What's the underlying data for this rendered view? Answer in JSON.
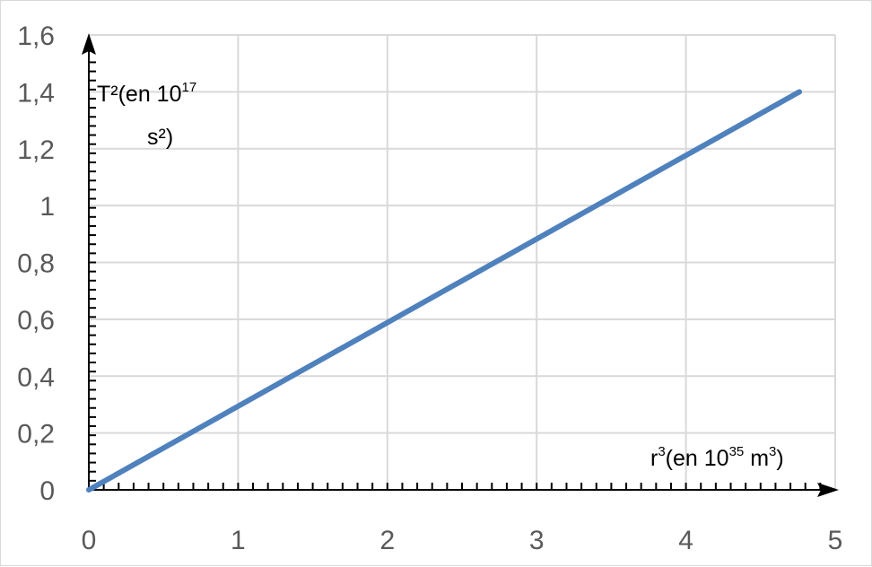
{
  "chart_data": {
    "type": "line",
    "title": "",
    "xlim": [
      0,
      5
    ],
    "ylim": [
      0,
      1.6
    ],
    "x_ticks": [
      "0",
      "1",
      "2",
      "3",
      "4",
      "5"
    ],
    "y_ticks": [
      "0",
      "0,2",
      "0,4",
      "0,6",
      "0,8",
      "1",
      "1,2",
      "1,4",
      "1,6"
    ],
    "x_tick_values": [
      0,
      1,
      2,
      3,
      4,
      5
    ],
    "y_tick_values": [
      0,
      0.2,
      0.4,
      0.6,
      0.8,
      1.0,
      1.2,
      1.4,
      1.6
    ],
    "xlabel": {
      "prefix": "r",
      "prefix_sup": "3",
      "middle": "(en 10",
      "middle_sup": "35",
      "unit": " m",
      "unit_sup": "3",
      "suffix": ")"
    },
    "ylabel": {
      "line1": "T²(en 10",
      "line1_sup": "17",
      "line2": "s²)"
    },
    "grid": true,
    "series": [
      {
        "color": "#4f81bd",
        "x": [
          0,
          4.76
        ],
        "y": [
          0,
          1.4
        ]
      }
    ]
  }
}
